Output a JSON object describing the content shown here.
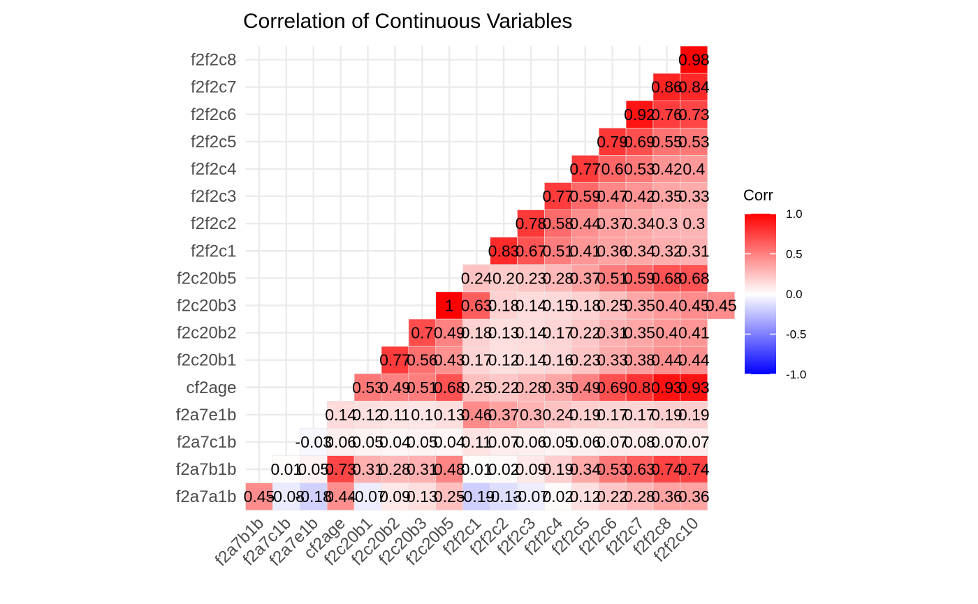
{
  "chart_data": {
    "type": "heatmap",
    "title": "Correlation of Continuous Variables",
    "x_categories": [
      "f2a7b1b",
      "f2a7c1b",
      "f2a7e1b",
      "cf2age",
      "f2c20b1",
      "f2c20b2",
      "f2c20b3",
      "f2c20b5",
      "f2f2c1",
      "f2f2c2",
      "f2f2c3",
      "f2f2c4",
      "f2f2c5",
      "f2f2c6",
      "f2f2c7",
      "f2f2c8",
      "f2f2c10"
    ],
    "y_categories": [
      "f2a7a1b",
      "f2a7b1b",
      "f2a7c1b",
      "f2a7e1b",
      "cf2age",
      "f2c20b1",
      "f2c20b2",
      "f2c20b3",
      "f2c20b5",
      "f2f2c1",
      "f2f2c2",
      "f2f2c3",
      "f2f2c4",
      "f2f2c5",
      "f2f2c6",
      "f2f2c7",
      "f2f2c8"
    ],
    "values": [
      [
        0.45,
        -0.08,
        -0.18,
        0.44,
        -0.07,
        0.09,
        0.13,
        0.25,
        -0.19,
        -0.13,
        -0.07,
        0.02,
        0.12,
        0.22,
        0.28,
        0.36,
        0.36
      ],
      [
        0.01,
        0.05,
        0.73,
        0.31,
        0.28,
        0.31,
        0.48,
        0.01,
        0.02,
        0.09,
        0.19,
        0.34,
        0.53,
        0.63,
        0.74,
        0.74
      ],
      [
        -0.03,
        0.06,
        0.05,
        0.04,
        0.05,
        0.04,
        0.11,
        0.07,
        0.06,
        0.05,
        0.06,
        0.07,
        0.08,
        0.07,
        0.07
      ],
      [
        0.14,
        0.12,
        0.11,
        0.1,
        0.13,
        0.46,
        0.37,
        0.3,
        0.24,
        0.19,
        0.17,
        0.17,
        0.19,
        0.19
      ],
      [
        0.53,
        0.49,
        0.51,
        0.68,
        0.25,
        0.22,
        0.28,
        0.35,
        0.49,
        0.69,
        0.8,
        0.93,
        0.93
      ],
      [
        0.77,
        0.56,
        0.43,
        0.17,
        0.12,
        0.14,
        0.16,
        0.23,
        0.33,
        0.38,
        0.44,
        0.44
      ],
      [
        0.7,
        0.49,
        0.18,
        0.13,
        0.14,
        0.17,
        0.22,
        0.31,
        0.35,
        0.4,
        0.41
      ],
      [
        1,
        0.63,
        0.18,
        0.14,
        0.15,
        0.18,
        0.25,
        0.35,
        0.4,
        0.45,
        0.45
      ],
      [
        0.24,
        0.2,
        0.23,
        0.28,
        0.37,
        0.51,
        0.59,
        0.68,
        0.68
      ],
      [
        0.83,
        0.67,
        0.51,
        0.41,
        0.36,
        0.34,
        0.32,
        0.31
      ],
      [
        0.78,
        0.58,
        0.44,
        0.37,
        0.34,
        0.3,
        0.3
      ],
      [
        0.77,
        0.59,
        0.47,
        0.42,
        0.35,
        0.33
      ],
      [
        0.77,
        0.6,
        0.53,
        0.42,
        0.4
      ],
      [
        0.79,
        0.69,
        0.55,
        0.53
      ],
      [
        0.92,
        0.76,
        0.73
      ],
      [
        0.86,
        0.84
      ],
      [
        0.98
      ]
    ],
    "value_labels": [
      [
        "0.45",
        "-0.08",
        "-0.18",
        "0.44",
        "-0.07",
        "0.09",
        "0.13",
        "0.25",
        "-0.19",
        "-0.13",
        "-0.07",
        "0.02",
        "0.12",
        "0.22",
        "0.28",
        "0.36",
        "0.36"
      ],
      [
        "0.01",
        "0.05",
        "0.73",
        "0.31",
        "0.28",
        "0.31",
        "0.48",
        "0.01",
        "0.02",
        "0.09",
        "0.19",
        "0.34",
        "0.53",
        "0.63",
        "0.74",
        "0.74"
      ],
      [
        "-0.03",
        "0.06",
        "0.05",
        "0.04",
        "0.05",
        "0.04",
        "0.11",
        "0.07",
        "0.06",
        "0.05",
        "0.06",
        "0.07",
        "0.08",
        "0.07",
        "0.07"
      ],
      [
        "0.14",
        "0.12",
        "0.11",
        "0.1",
        "0.13",
        "0.46",
        "0.37",
        "0.3",
        "0.24",
        "0.19",
        "0.17",
        "0.17",
        "0.19",
        "0.19"
      ],
      [
        "0.53",
        "0.49",
        "0.51",
        "0.68",
        "0.25",
        "0.22",
        "0.28",
        "0.35",
        "0.49",
        "0.69",
        "0.8",
        "0.93",
        "0.93"
      ],
      [
        "0.77",
        "0.56",
        "0.43",
        "0.17",
        "0.12",
        "0.14",
        "0.16",
        "0.23",
        "0.33",
        "0.38",
        "0.44",
        "0.44"
      ],
      [
        "0.7",
        "0.49",
        "0.18",
        "0.13",
        "0.14",
        "0.17",
        "0.22",
        "0.31",
        "0.35",
        "0.4",
        "0.41"
      ],
      [
        "1",
        "0.63",
        "0.18",
        "0.14",
        "0.15",
        "0.18",
        "0.25",
        "0.35",
        "0.4",
        "0.45",
        "0.45"
      ],
      [
        "0.24",
        "0.2",
        "0.23",
        "0.28",
        "0.37",
        "0.51",
        "0.59",
        "0.68",
        "0.68"
      ],
      [
        "0.83",
        "0.67",
        "0.51",
        "0.41",
        "0.36",
        "0.34",
        "0.32",
        "0.31"
      ],
      [
        "0.78",
        "0.58",
        "0.44",
        "0.37",
        "0.34",
        "0.3",
        "0.3"
      ],
      [
        "0.77",
        "0.59",
        "0.47",
        "0.42",
        "0.35",
        "0.33"
      ],
      [
        "0.77",
        "0.6",
        "0.53",
        "0.42",
        "0.4"
      ],
      [
        "0.79",
        "0.69",
        "0.55",
        "0.53"
      ],
      [
        "0.92",
        "0.76",
        "0.73"
      ],
      [
        "0.86",
        "0.84"
      ],
      [
        "0.98"
      ]
    ],
    "layout": "lower-triangle, row i starts at column i",
    "color_scale": {
      "low": "#0000ff",
      "mid": "#ffffff",
      "high": "#ff0000",
      "limits": [
        -1,
        1
      ]
    },
    "legend": {
      "title": "Corr",
      "placement": "right",
      "ticks": [
        1.0,
        0.5,
        0.0,
        -0.5,
        -1.0
      ],
      "tick_labels": [
        "1.0",
        "0.5",
        "0.0",
        "-0.5",
        "-1.0"
      ]
    },
    "grid": true,
    "xlabel": "",
    "ylabel": ""
  }
}
